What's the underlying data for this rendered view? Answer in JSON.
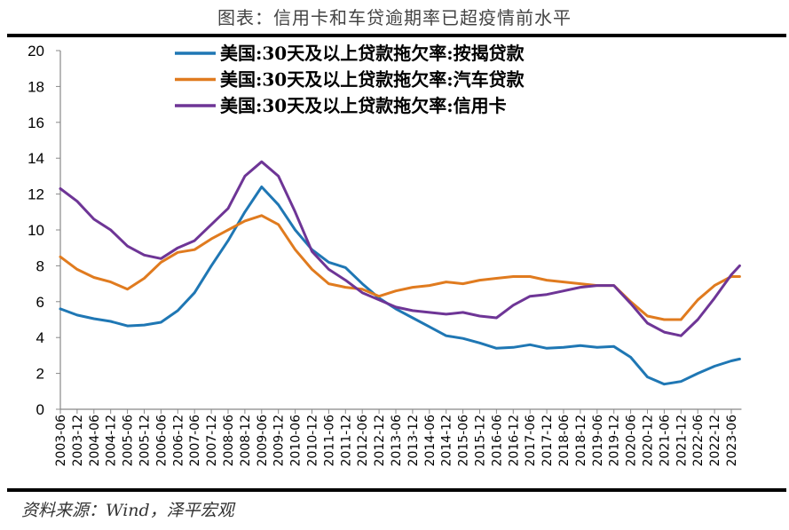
{
  "header": {
    "title": "图表：信用卡和车贷逾期率已超疫情前水平"
  },
  "footer": {
    "source": "资料来源：Wind，泽平宏观"
  },
  "chart_data": {
    "type": "line",
    "title": "",
    "xlabel": "",
    "ylabel": "",
    "ylim": [
      0,
      20
    ],
    "yticks": [
      0,
      2,
      4,
      6,
      8,
      10,
      12,
      14,
      16,
      18,
      20
    ],
    "grid": false,
    "legend_position": "top-center",
    "xtick_labels": [
      "2003-06",
      "2003-12",
      "2004-06",
      "2004-12",
      "2005-06",
      "2005-12",
      "2006-06",
      "2006-12",
      "2007-06",
      "2007-12",
      "2008-06",
      "2008-12",
      "2009-06",
      "2009-12",
      "2010-06",
      "2010-12",
      "2011-06",
      "2011-12",
      "2012-06",
      "2012-12",
      "2013-06",
      "2013-12",
      "2014-06",
      "2014-12",
      "2015-06",
      "2015-12",
      "2016-06",
      "2016-12",
      "2017-06",
      "2017-12",
      "2018-06",
      "2018-12",
      "2019-06",
      "2019-12",
      "2020-06",
      "2020-12",
      "2021-06",
      "2021-12",
      "2022-06",
      "2022-12",
      "2023-06"
    ],
    "x": [
      "2003-06",
      "2003-12",
      "2004-06",
      "2004-12",
      "2005-06",
      "2005-12",
      "2006-06",
      "2006-12",
      "2007-06",
      "2007-12",
      "2008-06",
      "2008-12",
      "2009-06",
      "2009-12",
      "2010-06",
      "2010-12",
      "2011-06",
      "2011-12",
      "2012-06",
      "2012-12",
      "2013-06",
      "2013-12",
      "2014-06",
      "2014-12",
      "2015-06",
      "2015-12",
      "2016-06",
      "2016-12",
      "2017-06",
      "2017-12",
      "2018-06",
      "2018-12",
      "2019-06",
      "2019-12",
      "2020-06",
      "2020-12",
      "2021-06",
      "2021-12",
      "2022-06",
      "2022-12",
      "2023-06",
      "2023-09"
    ],
    "series": [
      {
        "name": "美国:30天及以上贷款拖欠率:按揭贷款",
        "color": "#1f77b4",
        "values": [
          5.6,
          5.25,
          5.05,
          4.9,
          4.65,
          4.7,
          4.85,
          5.5,
          6.5,
          8.0,
          9.4,
          11.0,
          12.4,
          11.4,
          10.0,
          8.9,
          8.2,
          7.9,
          7.0,
          6.2,
          5.6,
          5.1,
          4.6,
          4.1,
          3.95,
          3.7,
          3.4,
          3.45,
          3.6,
          3.4,
          3.45,
          3.55,
          3.45,
          3.5,
          2.9,
          1.8,
          1.4,
          1.55,
          2.0,
          2.4,
          2.7,
          2.8
        ]
      },
      {
        "name": "美国:30天及以上贷款拖欠率:汽车贷款",
        "color": "#e07b1f",
        "values": [
          8.5,
          7.8,
          7.35,
          7.1,
          6.7,
          7.3,
          8.2,
          8.75,
          8.9,
          9.5,
          10.0,
          10.5,
          10.8,
          10.3,
          8.9,
          7.8,
          7.0,
          6.8,
          6.7,
          6.3,
          6.6,
          6.8,
          6.9,
          7.1,
          7.0,
          7.2,
          7.3,
          7.4,
          7.4,
          7.2,
          7.1,
          7.0,
          6.9,
          6.9,
          6.0,
          5.2,
          5.0,
          5.0,
          6.1,
          6.9,
          7.4,
          7.4
        ]
      },
      {
        "name": "美国:30天及以上贷款拖欠率:信用卡",
        "color": "#6e3596",
        "values": [
          12.3,
          11.6,
          10.6,
          10.0,
          9.1,
          8.6,
          8.4,
          9.0,
          9.4,
          10.3,
          11.2,
          13.0,
          13.8,
          13.0,
          11.0,
          8.8,
          7.8,
          7.2,
          6.5,
          6.1,
          5.7,
          5.5,
          5.4,
          5.3,
          5.4,
          5.2,
          5.1,
          5.8,
          6.3,
          6.4,
          6.6,
          6.8,
          6.9,
          6.9,
          5.9,
          4.8,
          4.3,
          4.1,
          5.0,
          6.2,
          7.5,
          8.0
        ]
      }
    ]
  }
}
